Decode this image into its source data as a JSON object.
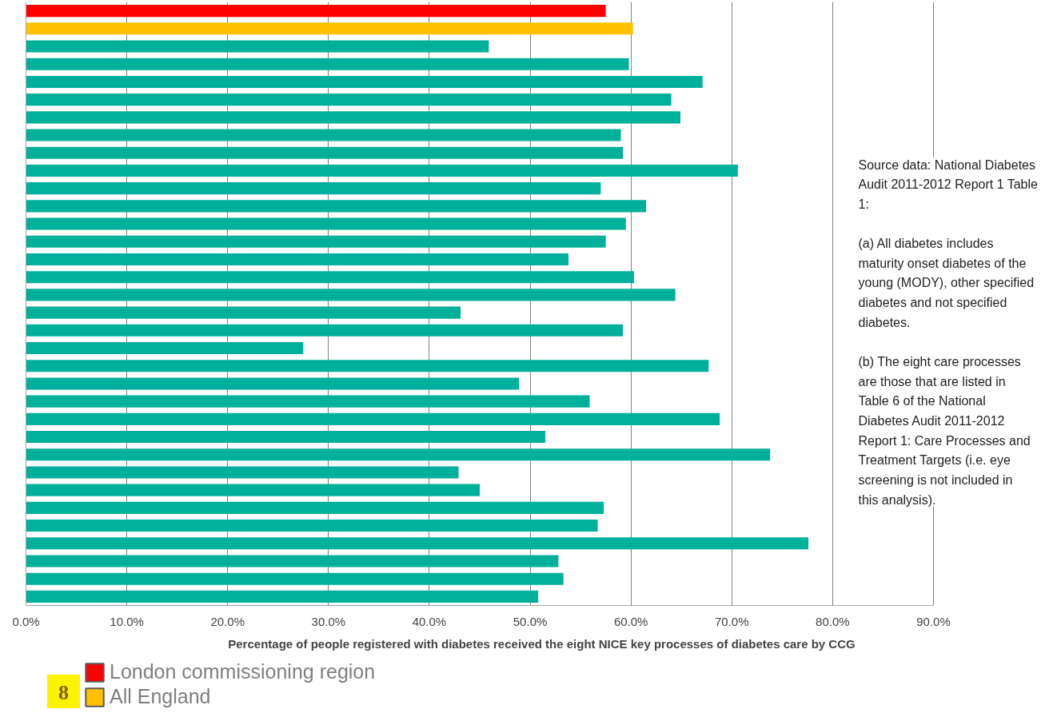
{
  "chart_data": {
    "type": "bar",
    "orientation": "horizontal",
    "xlabel": "Percentage of people registered with diabetes received the eight NICE key processes of diabetes care by CCG",
    "categories": [
      null,
      null,
      null,
      null,
      null,
      null,
      null,
      null,
      null,
      null,
      null,
      null,
      null,
      null,
      null,
      null,
      null,
      null,
      null,
      null,
      null,
      null,
      null,
      null,
      null,
      null,
      null,
      null,
      null,
      null,
      null,
      null,
      null,
      null
    ],
    "series": [
      {
        "name": "London commissioning region",
        "color": "#ff0000",
        "values": [
          57.5,
          null,
          null,
          null,
          null,
          null,
          null,
          null,
          null,
          null,
          null,
          null,
          null,
          null,
          null,
          null,
          null,
          null,
          null,
          null,
          null,
          null,
          null,
          null,
          null,
          null,
          null,
          null,
          null,
          null,
          null,
          null,
          null,
          null
        ]
      },
      {
        "name": "All England",
        "color": "#ffc000",
        "values": [
          null,
          60.2,
          null,
          null,
          null,
          null,
          null,
          null,
          null,
          null,
          null,
          null,
          null,
          null,
          null,
          null,
          null,
          null,
          null,
          null,
          null,
          null,
          null,
          null,
          null,
          null,
          null,
          null,
          null,
          null,
          null,
          null,
          null,
          null
        ]
      },
      {
        "color": "#00b09b",
        "values": [
          null,
          null,
          45.9,
          59.8,
          67.1,
          64.0,
          64.9,
          59.0,
          59.2,
          70.6,
          57.0,
          61.5,
          59.5,
          57.5,
          53.8,
          60.3,
          64.4,
          43.1,
          59.2,
          27.5,
          67.7,
          48.9,
          55.9,
          68.8,
          51.5,
          73.8,
          42.9,
          45.0,
          57.3,
          56.7,
          77.6,
          52.8,
          53.3,
          50.8
        ]
      }
    ],
    "xlim": [
      0,
      90
    ],
    "xticks": [
      {
        "value": 0,
        "label": "0.0%"
      },
      {
        "value": 10,
        "label": "10.0%"
      },
      {
        "value": 20,
        "label": "20.0%"
      },
      {
        "value": 30,
        "label": "30.0%"
      },
      {
        "value": 40,
        "label": "40.0%"
      },
      {
        "value": 50,
        "label": "50.0%"
      },
      {
        "value": 60,
        "label": "60.0%"
      },
      {
        "value": 70,
        "label": "70.0%"
      },
      {
        "value": 80,
        "label": "80.0%"
      },
      {
        "value": 90,
        "label": "90.0%"
      }
    ],
    "grid": "x",
    "legend": "bottom left",
    "tick_labels": "x",
    "annotations": [
      "Source data: National Diabetes Audit 2011-2012 Report 1 Table 1:",
      "(a)  All diabetes includes maturity onset diabetes of the young (MODY), other specified diabetes and not specified diabetes.",
      "(b)  The eight care processes are those that are listed in Table 6 of the National Diabetes Audit 2011-2012 Report 1: Care Processes and Treatment Targets (i.e. eye screening is not included in this analysis).",
      "8"
    ]
  }
}
